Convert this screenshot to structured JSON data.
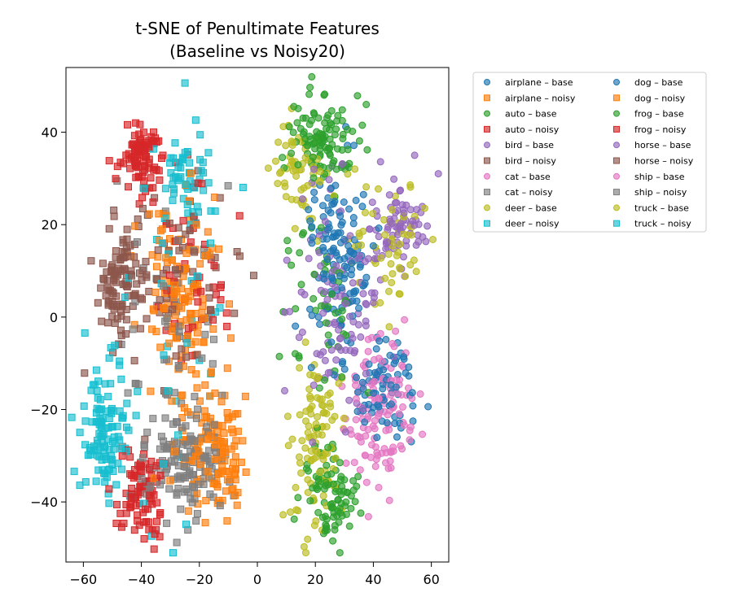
{
  "chart_data": {
    "type": "scatter",
    "title": "t-SNE of Penultimate Features",
    "subtitle": "(Baseline vs Noisy20)",
    "xlabel": "",
    "ylabel": "",
    "xlim": [
      -66,
      66
    ],
    "ylim": [
      -53,
      54
    ],
    "xticks": [
      -60,
      -40,
      -20,
      0,
      20,
      40,
      60
    ],
    "yticks": [
      -40,
      -20,
      0,
      20,
      40
    ],
    "xtick_labels": [
      "−60",
      "−40",
      "−20",
      "0",
      "20",
      "40",
      "60"
    ],
    "ytick_labels": [
      "−40",
      "−20",
      "0",
      "20",
      "40"
    ],
    "grid": false,
    "legend_placement": "outside upper right",
    "legend_columns": 2,
    "point_opacity": 0.65,
    "series": [
      {
        "name": "airplane – base",
        "marker": "circle",
        "color": "#1f77b4",
        "clusters": [
          {
            "cx": 45,
            "cy": -15,
            "sx": 5,
            "sy": 6,
            "n": 70
          },
          {
            "cx": 28,
            "cy": 18,
            "sx": 6,
            "sy": 8,
            "n": 90
          },
          {
            "cx": 28,
            "cy": 3,
            "sx": 6,
            "sy": 6,
            "n": 40
          }
        ]
      },
      {
        "name": "airplane – noisy",
        "marker": "square",
        "color": "#ff7f0e",
        "clusters": [
          {
            "cx": -25,
            "cy": 5,
            "sx": 6,
            "sy": 10,
            "n": 120
          },
          {
            "cx": -18,
            "cy": -28,
            "sx": 7,
            "sy": 6,
            "n": 90
          },
          {
            "cx": -10,
            "cy": -32,
            "sx": 3,
            "sy": 5,
            "n": 40
          }
        ]
      },
      {
        "name": "auto – base",
        "marker": "circle",
        "color": "#2ca02c",
        "clusters": [
          {
            "cx": 22,
            "cy": 38,
            "sx": 5,
            "sy": 5,
            "n": 110
          },
          {
            "cx": 25,
            "cy": -38,
            "sx": 5,
            "sy": 5,
            "n": 90
          },
          {
            "cx": 22,
            "cy": 0,
            "sx": 7,
            "sy": 12,
            "n": 50
          }
        ]
      },
      {
        "name": "auto – noisy",
        "marker": "square",
        "color": "#d62728",
        "clusters": [
          {
            "cx": -40,
            "cy": 35,
            "sx": 4,
            "sy": 4,
            "n": 90
          },
          {
            "cx": -40,
            "cy": -38,
            "sx": 4,
            "sy": 5,
            "n": 90
          },
          {
            "cx": -22,
            "cy": 12,
            "sx": 7,
            "sy": 10,
            "n": 50
          }
        ]
      },
      {
        "name": "bird – base",
        "marker": "circle",
        "color": "#9467bd",
        "clusters": [
          {
            "cx": 50,
            "cy": 19,
            "sx": 5,
            "sy": 5,
            "n": 70
          },
          {
            "cx": 28,
            "cy": 5,
            "sx": 8,
            "sy": 12,
            "n": 110
          }
        ]
      },
      {
        "name": "bird – noisy",
        "marker": "square",
        "color": "#8c564b",
        "clusters": [
          {
            "cx": -48,
            "cy": 6,
            "sx": 4,
            "sy": 6,
            "n": 90
          },
          {
            "cx": -30,
            "cy": 10,
            "sx": 10,
            "sy": 12,
            "n": 70
          }
        ]
      },
      {
        "name": "cat – base",
        "marker": "circle",
        "color": "#e377c2",
        "clusters": [
          {
            "cx": 42,
            "cy": -20,
            "sx": 6,
            "sy": 8,
            "n": 130
          }
        ]
      },
      {
        "name": "cat – noisy",
        "marker": "square",
        "color": "#7f7f7f",
        "clusters": [
          {
            "cx": -25,
            "cy": -32,
            "sx": 7,
            "sy": 6,
            "n": 130
          },
          {
            "cx": -28,
            "cy": -5,
            "sx": 10,
            "sy": 12,
            "n": 60
          }
        ]
      },
      {
        "name": "deer – base",
        "marker": "circle",
        "color": "#bcbd22",
        "clusters": [
          {
            "cx": 20,
            "cy": -25,
            "sx": 5,
            "sy": 10,
            "n": 100
          },
          {
            "cx": 15,
            "cy": 32,
            "sx": 5,
            "sy": 6,
            "n": 60
          },
          {
            "cx": 45,
            "cy": 15,
            "sx": 8,
            "sy": 8,
            "n": 60
          }
        ]
      },
      {
        "name": "deer – noisy",
        "marker": "square",
        "color": "#17becf",
        "clusters": [
          {
            "cx": -53,
            "cy": -25,
            "sx": 4,
            "sy": 7,
            "n": 110
          },
          {
            "cx": -25,
            "cy": 30,
            "sx": 5,
            "sy": 4,
            "n": 50
          },
          {
            "cx": -30,
            "cy": -10,
            "sx": 12,
            "sy": 20,
            "n": 40
          }
        ]
      }
    ]
  }
}
